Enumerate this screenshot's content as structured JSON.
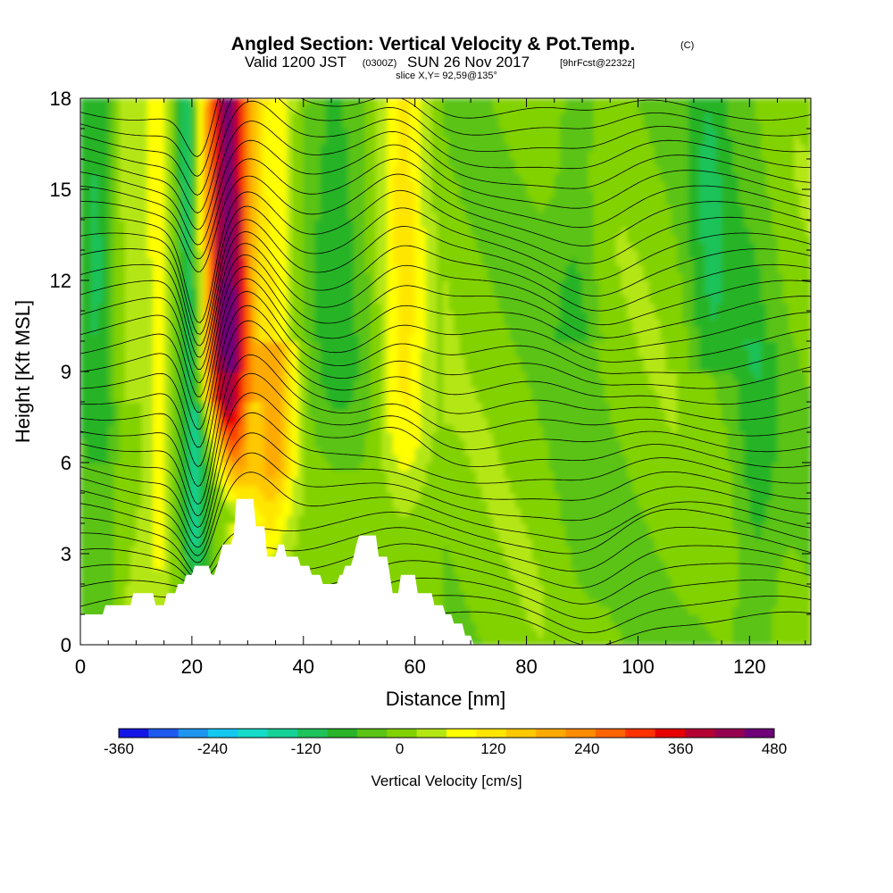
{
  "chart_data": {
    "type": "heatmap",
    "title": "Angled Section: Vertical Velocity & Pot.Temp.",
    "title_suffix": "(C)",
    "subtitle": {
      "valid_prefix": "Valid 1200 JST",
      "valid_utc": "(0300Z)",
      "valid_date": "SUN 26 Nov 2017",
      "forecast": "[9hrFcst@2232z]",
      "slice": "slice X,Y= 92,59@135°"
    },
    "xlabel": "Distance [nm]",
    "ylabel": "Height [Kft MSL]",
    "xlim": [
      0,
      131
    ],
    "ylim": [
      0,
      18
    ],
    "x_ticks": [
      0,
      20,
      40,
      60,
      80,
      100,
      120
    ],
    "y_ticks": [
      0,
      3,
      6,
      9,
      12,
      15,
      18
    ],
    "colorbar": {
      "label": "Vertical Velocity [cm/s]",
      "min": -360,
      "max": 480,
      "step": 40,
      "tick_labels": [
        "-360",
        "-240",
        "-120",
        "0",
        "120",
        "240",
        "360",
        "480"
      ],
      "colors": [
        "#1414e6",
        "#1e5af0",
        "#1e96f0",
        "#14c8f0",
        "#14dcc8",
        "#14d296",
        "#1ec35a",
        "#28b428",
        "#5ac314",
        "#82d200",
        "#b4e614",
        "#ffff00",
        "#ffe600",
        "#ffc800",
        "#ffaa00",
        "#ff8c00",
        "#ff6400",
        "#ff3200",
        "#e60000",
        "#b40032",
        "#960050",
        "#6e0078"
      ]
    },
    "terrain_kft": [
      [
        0,
        1.0
      ],
      [
        4,
        1.0
      ],
      [
        4.5,
        1.3
      ],
      [
        9,
        1.3
      ],
      [
        9.5,
        1.7
      ],
      [
        13,
        1.7
      ],
      [
        13.5,
        1.3
      ],
      [
        15,
        1.3
      ],
      [
        15.5,
        1.7
      ],
      [
        17,
        1.7
      ],
      [
        17.5,
        2.0
      ],
      [
        18.5,
        2.0
      ],
      [
        19,
        2.3
      ],
      [
        20,
        2.3
      ],
      [
        20.5,
        2.6
      ],
      [
        23,
        2.6
      ],
      [
        23.5,
        2.3
      ],
      [
        24,
        2.3
      ],
      [
        24.5,
        2.6
      ],
      [
        25,
        2.9
      ],
      [
        25.5,
        3.3
      ],
      [
        27,
        3.3
      ],
      [
        27.5,
        3.6
      ],
      [
        28,
        4.8
      ],
      [
        31,
        4.8
      ],
      [
        31.5,
        3.9
      ],
      [
        33,
        3.9
      ],
      [
        33.5,
        2.9
      ],
      [
        35,
        2.9
      ],
      [
        35.5,
        3.3
      ],
      [
        36.5,
        3.3
      ],
      [
        37,
        2.9
      ],
      [
        39,
        2.9
      ],
      [
        39.5,
        2.6
      ],
      [
        41,
        2.6
      ],
      [
        41.5,
        2.3
      ],
      [
        43,
        2.3
      ],
      [
        43.5,
        2.0
      ],
      [
        46,
        2.0
      ],
      [
        46.5,
        2.3
      ],
      [
        47,
        2.3
      ],
      [
        47.5,
        2.6
      ],
      [
        48.5,
        2.6
      ],
      [
        49,
        2.9
      ],
      [
        49.5,
        3.3
      ],
      [
        50,
        3.6
      ],
      [
        53,
        3.6
      ],
      [
        53.5,
        2.9
      ],
      [
        55,
        2.9
      ],
      [
        55.5,
        2.3
      ],
      [
        56,
        1.7
      ],
      [
        57,
        1.7
      ],
      [
        57.5,
        2.3
      ],
      [
        60,
        2.3
      ],
      [
        60.5,
        1.7
      ],
      [
        63,
        1.7
      ],
      [
        63.5,
        1.3
      ],
      [
        65,
        1.3
      ],
      [
        65.5,
        1.0
      ],
      [
        66.5,
        1.0
      ],
      [
        67,
        0.7
      ],
      [
        68.5,
        0.7
      ],
      [
        69,
        0.3
      ],
      [
        70,
        0.3
      ],
      [
        70.5,
        0.0
      ],
      [
        131,
        0.0
      ]
    ]
  }
}
